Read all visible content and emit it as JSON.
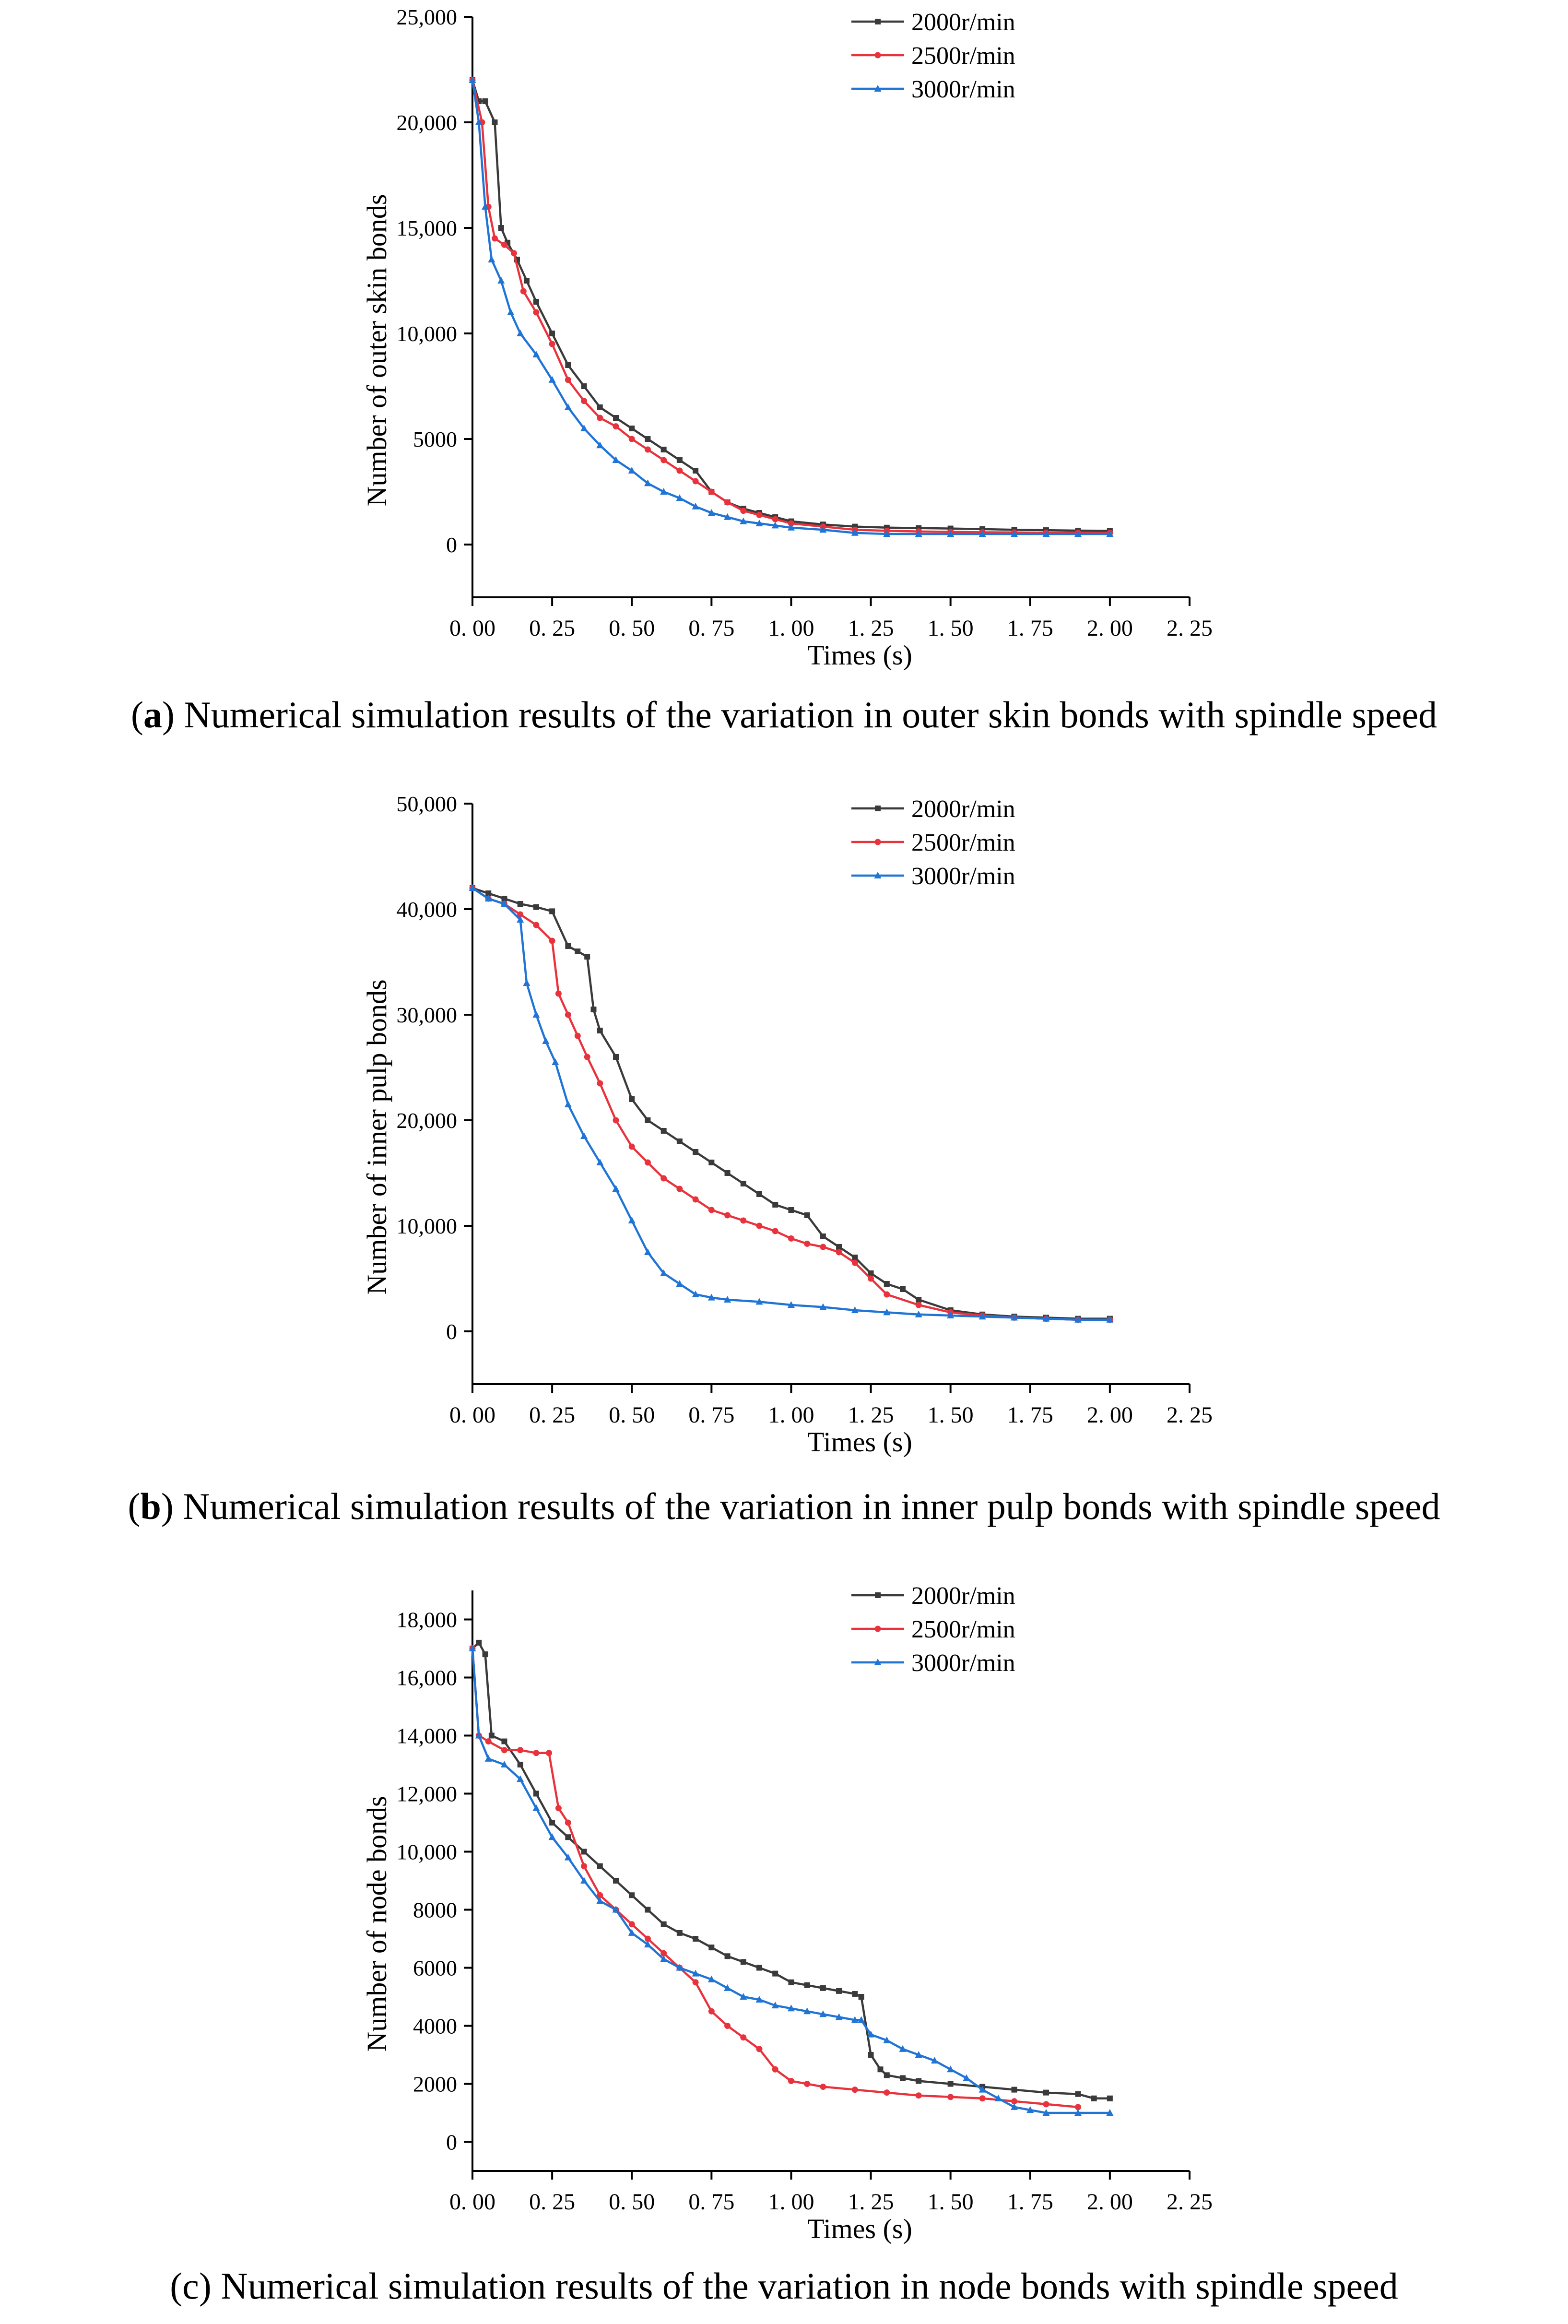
{
  "chart_data": [
    {
      "type": "line",
      "caption_letter": "a",
      "caption_text": "Numerical simulation results of the variation in outer skin bonds with spindle speed",
      "xlabel": "Times (s)",
      "ylabel": "Number of outer skin bonds",
      "xlim": [
        0,
        2.25
      ],
      "ylim": [
        -2500,
        25000
      ],
      "xticks": [
        0,
        0.25,
        0.5,
        0.75,
        1.0,
        1.25,
        1.5,
        1.75,
        2.0,
        2.25
      ],
      "xtick_labels": [
        "0. 00",
        "0. 25",
        "0. 50",
        "0. 75",
        "1. 00",
        "1. 25",
        "1. 50",
        "1. 75",
        "2. 00",
        "2. 25"
      ],
      "yticks": [
        0,
        5000,
        10000,
        15000,
        20000,
        25000
      ],
      "ytick_labels": [
        "0",
        "5000",
        "10,000",
        "15,000",
        "20,000",
        "25,000"
      ],
      "legend_position": "top-right",
      "series": [
        {
          "name": "2000r/min",
          "color": "#3a3a3a",
          "marker": "square",
          "x": [
            0,
            0.02,
            0.04,
            0.07,
            0.09,
            0.11,
            0.14,
            0.17,
            0.2,
            0.25,
            0.3,
            0.35,
            0.4,
            0.45,
            0.5,
            0.55,
            0.6,
            0.65,
            0.7,
            0.75,
            0.8,
            0.85,
            0.9,
            0.95,
            1.0,
            1.1,
            1.2,
            1.3,
            1.4,
            1.5,
            1.6,
            1.7,
            1.8,
            1.9,
            2.0
          ],
          "y": [
            22000,
            21000,
            21000,
            20000,
            15000,
            14300,
            13500,
            12500,
            11500,
            10000,
            8500,
            7500,
            6500,
            6000,
            5500,
            5000,
            4500,
            4000,
            3500,
            2500,
            2000,
            1700,
            1500,
            1300,
            1100,
            950,
            850,
            800,
            780,
            760,
            730,
            700,
            680,
            660,
            650
          ]
        },
        {
          "name": "2500r/min",
          "color": "#e8323c",
          "marker": "circle",
          "x": [
            0,
            0.03,
            0.05,
            0.07,
            0.1,
            0.13,
            0.16,
            0.2,
            0.25,
            0.3,
            0.35,
            0.4,
            0.45,
            0.5,
            0.55,
            0.6,
            0.65,
            0.7,
            0.75,
            0.8,
            0.85,
            0.9,
            0.95,
            1.0,
            1.1,
            1.2,
            1.3,
            1.4,
            1.5,
            1.6,
            1.7,
            1.8,
            1.9,
            2.0
          ],
          "y": [
            22000,
            20000,
            16000,
            14500,
            14200,
            13800,
            12000,
            11000,
            9500,
            7800,
            6800,
            6000,
            5600,
            5000,
            4500,
            4000,
            3500,
            3000,
            2500,
            2000,
            1600,
            1400,
            1200,
            1000,
            850,
            700,
            650,
            620,
            600,
            580,
            570,
            560,
            560,
            550
          ]
        },
        {
          "name": "3000r/min",
          "color": "#1f74d6",
          "marker": "triangle",
          "x": [
            0,
            0.02,
            0.04,
            0.06,
            0.09,
            0.12,
            0.15,
            0.2,
            0.25,
            0.3,
            0.35,
            0.4,
            0.45,
            0.5,
            0.55,
            0.6,
            0.65,
            0.7,
            0.75,
            0.8,
            0.85,
            0.9,
            0.95,
            1.0,
            1.1,
            1.2,
            1.3,
            1.4,
            1.5,
            1.6,
            1.7,
            1.8,
            1.9,
            2.0
          ],
          "y": [
            22000,
            20000,
            16000,
            13500,
            12500,
            11000,
            10000,
            9000,
            7800,
            6500,
            5500,
            4700,
            4000,
            3500,
            2900,
            2500,
            2200,
            1800,
            1500,
            1300,
            1100,
            1000,
            900,
            800,
            700,
            550,
            500,
            500,
            500,
            500,
            500,
            500,
            500,
            500
          ]
        }
      ]
    },
    {
      "type": "line",
      "caption_letter": "b",
      "caption_text": "Numerical simulation results of the variation in inner pulp bonds with spindle speed",
      "xlabel": "Times (s)",
      "ylabel": "Number of inner pulp bonds",
      "xlim": [
        0,
        2.25
      ],
      "ylim": [
        -5000,
        50000
      ],
      "xticks": [
        0,
        0.25,
        0.5,
        0.75,
        1.0,
        1.25,
        1.5,
        1.75,
        2.0,
        2.25
      ],
      "xtick_labels": [
        "0. 00",
        "0. 25",
        "0. 50",
        "0. 75",
        "1. 00",
        "1. 25",
        "1. 50",
        "1. 75",
        "2. 00",
        "2. 25"
      ],
      "yticks": [
        0,
        10000,
        20000,
        30000,
        40000,
        50000
      ],
      "ytick_labels": [
        "0",
        "10,000",
        "20,000",
        "30,000",
        "40,000",
        "50,000"
      ],
      "legend_position": "top-right",
      "series": [
        {
          "name": "2000r/min",
          "color": "#3a3a3a",
          "marker": "square",
          "x": [
            0,
            0.05,
            0.1,
            0.15,
            0.2,
            0.25,
            0.3,
            0.33,
            0.36,
            0.38,
            0.4,
            0.45,
            0.5,
            0.55,
            0.6,
            0.65,
            0.7,
            0.75,
            0.8,
            0.85,
            0.9,
            0.95,
            1.0,
            1.05,
            1.1,
            1.15,
            1.2,
            1.25,
            1.3,
            1.35,
            1.4,
            1.5,
            1.6,
            1.7,
            1.8,
            1.9,
            2.0
          ],
          "y": [
            42000,
            41500,
            41000,
            40500,
            40200,
            39800,
            36500,
            36000,
            35500,
            30500,
            28500,
            26000,
            22000,
            20000,
            19000,
            18000,
            17000,
            16000,
            15000,
            14000,
            13000,
            12000,
            11500,
            11000,
            9000,
            8000,
            7000,
            5500,
            4500,
            4000,
            3000,
            2000,
            1600,
            1400,
            1300,
            1200,
            1200
          ]
        },
        {
          "name": "2500r/min",
          "color": "#e8323c",
          "marker": "circle",
          "x": [
            0,
            0.05,
            0.1,
            0.15,
            0.2,
            0.25,
            0.27,
            0.3,
            0.33,
            0.36,
            0.4,
            0.45,
            0.5,
            0.55,
            0.6,
            0.65,
            0.7,
            0.75,
            0.8,
            0.85,
            0.9,
            0.95,
            1.0,
            1.05,
            1.1,
            1.15,
            1.2,
            1.25,
            1.3,
            1.4,
            1.5,
            1.6,
            1.7,
            1.8,
            1.9,
            2.0
          ],
          "y": [
            42000,
            41000,
            40500,
            39500,
            38500,
            37000,
            32000,
            30000,
            28000,
            26000,
            23500,
            20000,
            17500,
            16000,
            14500,
            13500,
            12500,
            11500,
            11000,
            10500,
            10000,
            9500,
            8800,
            8300,
            8000,
            7500,
            6500,
            5000,
            3500,
            2500,
            1800,
            1500,
            1300,
            1200,
            1100,
            1100
          ]
        },
        {
          "name": "3000r/min",
          "color": "#1f74d6",
          "marker": "triangle",
          "x": [
            0,
            0.05,
            0.1,
            0.15,
            0.17,
            0.2,
            0.23,
            0.26,
            0.3,
            0.35,
            0.4,
            0.45,
            0.5,
            0.55,
            0.6,
            0.65,
            0.7,
            0.75,
            0.8,
            0.9,
            1.0,
            1.1,
            1.2,
            1.3,
            1.4,
            1.5,
            1.6,
            1.7,
            1.8,
            1.9,
            2.0
          ],
          "y": [
            42000,
            41000,
            40500,
            39000,
            33000,
            30000,
            27500,
            25500,
            21500,
            18500,
            16000,
            13500,
            10500,
            7500,
            5500,
            4500,
            3500,
            3200,
            3000,
            2800,
            2500,
            2300,
            2000,
            1800,
            1600,
            1500,
            1400,
            1300,
            1200,
            1100,
            1100
          ]
        }
      ]
    },
    {
      "type": "line",
      "caption_letter": "c",
      "caption_text": "Numerical simulation results of the variation in node bonds with spindle speed",
      "xlabel": "Times (s)",
      "ylabel": "Number of node bonds",
      "xlim": [
        0,
        2.25
      ],
      "ylim": [
        -1000,
        19000
      ],
      "xticks": [
        0,
        0.25,
        0.5,
        0.75,
        1.0,
        1.25,
        1.5,
        1.75,
        2.0,
        2.25
      ],
      "xtick_labels": [
        "0. 00",
        "0. 25",
        "0. 50",
        "0. 75",
        "1. 00",
        "1. 25",
        "1. 50",
        "1. 75",
        "2. 00",
        "2. 25"
      ],
      "yticks": [
        0,
        2000,
        4000,
        6000,
        8000,
        10000,
        12000,
        14000,
        16000,
        18000
      ],
      "ytick_labels": [
        "0",
        "2000",
        "4000",
        "6000",
        "8000",
        "10,000",
        "12,000",
        "14,000",
        "16,000",
        "18,000"
      ],
      "legend_position": "top-right",
      "series": [
        {
          "name": "2000r/min",
          "color": "#3a3a3a",
          "marker": "square",
          "x": [
            0,
            0.02,
            0.04,
            0.06,
            0.1,
            0.15,
            0.2,
            0.25,
            0.3,
            0.35,
            0.4,
            0.45,
            0.5,
            0.55,
            0.6,
            0.65,
            0.7,
            0.75,
            0.8,
            0.85,
            0.9,
            0.95,
            1.0,
            1.05,
            1.1,
            1.15,
            1.2,
            1.22,
            1.25,
            1.28,
            1.3,
            1.35,
            1.4,
            1.5,
            1.6,
            1.7,
            1.8,
            1.9,
            1.95,
            2.0
          ],
          "y": [
            17000,
            17200,
            16800,
            14000,
            13800,
            13000,
            12000,
            11000,
            10500,
            10000,
            9500,
            9000,
            8500,
            8000,
            7500,
            7200,
            7000,
            6700,
            6400,
            6200,
            6000,
            5800,
            5500,
            5400,
            5300,
            5200,
            5100,
            5000,
            3000,
            2500,
            2300,
            2200,
            2100,
            2000,
            1900,
            1800,
            1700,
            1650,
            1500,
            1500
          ]
        },
        {
          "name": "2500r/min",
          "color": "#e8323c",
          "marker": "circle",
          "x": [
            0,
            0.02,
            0.05,
            0.1,
            0.15,
            0.2,
            0.24,
            0.27,
            0.3,
            0.35,
            0.4,
            0.45,
            0.5,
            0.55,
            0.6,
            0.65,
            0.7,
            0.75,
            0.8,
            0.85,
            0.9,
            0.95,
            1.0,
            1.05,
            1.1,
            1.2,
            1.3,
            1.4,
            1.5,
            1.6,
            1.7,
            1.8,
            1.9
          ],
          "y": [
            17000,
            14000,
            13800,
            13500,
            13500,
            13400,
            13400,
            11500,
            11000,
            9500,
            8500,
            8000,
            7500,
            7000,
            6500,
            6000,
            5500,
            4500,
            4000,
            3600,
            3200,
            2500,
            2100,
            2000,
            1900,
            1800,
            1700,
            1600,
            1550,
            1500,
            1400,
            1300,
            1200
          ]
        },
        {
          "name": "3000r/min",
          "color": "#1f74d6",
          "marker": "triangle",
          "x": [
            0,
            0.02,
            0.05,
            0.1,
            0.15,
            0.2,
            0.25,
            0.3,
            0.35,
            0.4,
            0.45,
            0.5,
            0.55,
            0.6,
            0.65,
            0.7,
            0.75,
            0.8,
            0.85,
            0.9,
            0.95,
            1.0,
            1.05,
            1.1,
            1.15,
            1.2,
            1.22,
            1.25,
            1.3,
            1.35,
            1.4,
            1.45,
            1.5,
            1.55,
            1.6,
            1.65,
            1.7,
            1.75,
            1.8,
            1.9,
            2.0
          ],
          "y": [
            17000,
            14000,
            13200,
            13000,
            12500,
            11500,
            10500,
            9800,
            9000,
            8300,
            8000,
            7200,
            6800,
            6300,
            6000,
            5800,
            5600,
            5300,
            5000,
            4900,
            4700,
            4600,
            4500,
            4400,
            4300,
            4200,
            4200,
            3700,
            3500,
            3200,
            3000,
            2800,
            2500,
            2200,
            1800,
            1500,
            1200,
            1100,
            1000,
            1000,
            1000
          ]
        }
      ]
    }
  ]
}
